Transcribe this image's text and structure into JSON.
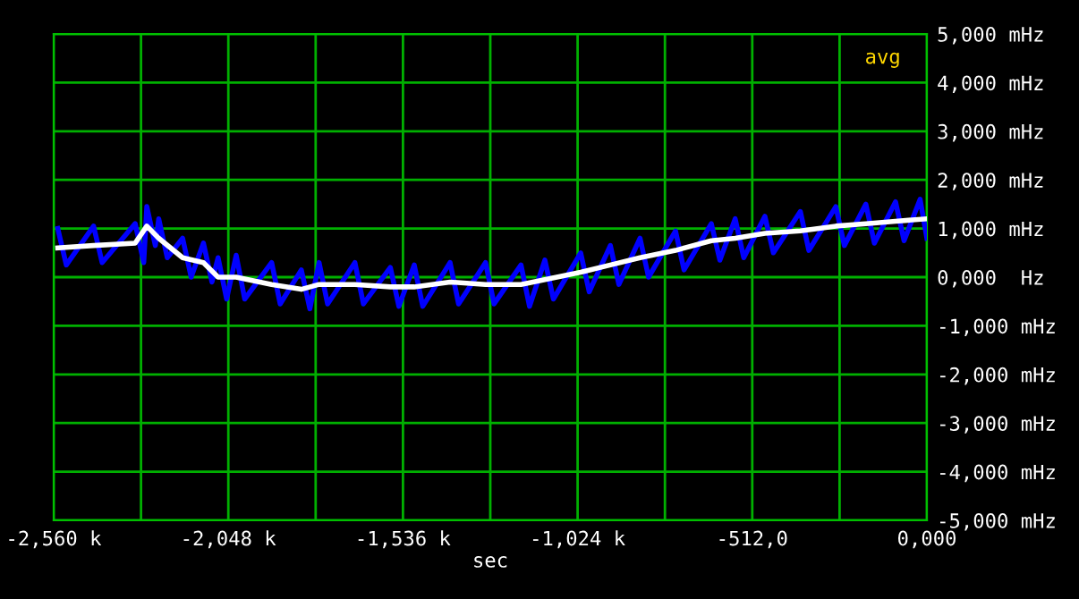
{
  "chart_data": {
    "type": "line",
    "xlabel": "sec",
    "x": [
      -2548,
      -2443,
      -2321,
      -2287,
      -2252,
      -2182,
      -2121,
      -2078,
      -2025,
      -1921,
      -1834,
      -1782,
      -1677,
      -1573,
      -1503,
      -1398,
      -1294,
      -1190,
      -1120,
      -1015,
      -928,
      -841,
      -737,
      -632,
      -562,
      -475,
      -371,
      -267,
      -179,
      -92,
      0
    ],
    "series": [
      {
        "color": "#0000ff",
        "x": [
          -2548,
          -2523,
          -2443,
          -2418,
          -2321,
          -2296,
          -2287,
          -2262,
          -2252,
          -2227,
          -2182,
          -2157,
          -2121,
          -2096,
          -2078,
          -2053,
          -2025,
          -2000,
          -1921,
          -1896,
          -1834,
          -1809,
          -1782,
          -1757,
          -1677,
          -1652,
          -1573,
          -1548,
          -1503,
          -1478,
          -1398,
          -1373,
          -1294,
          -1269,
          -1190,
          -1165,
          -1120,
          -1095,
          -1015,
          -990,
          -928,
          -903,
          -841,
          -816,
          -737,
          -712,
          -632,
          -607,
          -562,
          -537,
          -475,
          -450,
          -371,
          -346,
          -267,
          -242,
          -179,
          -154,
          -92,
          -67,
          -20,
          0
        ],
        "values": [
          1.0,
          0.25,
          1.05,
          0.3,
          1.1,
          0.3,
          1.45,
          0.65,
          1.2,
          0.4,
          0.8,
          0,
          0.7,
          -0.1,
          0.4,
          -0.45,
          0.45,
          -0.45,
          0.3,
          -0.55,
          0.15,
          -0.65,
          0.3,
          -0.55,
          0.3,
          -0.55,
          0.2,
          -0.6,
          0.25,
          -0.6,
          0.3,
          -0.55,
          0.3,
          -0.55,
          0.25,
          -0.6,
          0.35,
          -0.45,
          0.5,
          -0.3,
          0.65,
          -0.15,
          0.8,
          0,
          0.95,
          0.15,
          1.1,
          0.35,
          1.2,
          0.4,
          1.25,
          0.5,
          1.35,
          0.55,
          1.45,
          0.65,
          1.5,
          0.7,
          1.55,
          0.75,
          1.6,
          0.8
        ]
      },
      {
        "color": "#ffffff",
        "values": [
          0.6,
          0.65,
          0.7,
          1.05,
          0.8,
          0.4,
          0.3,
          0,
          0,
          -0.15,
          -0.25,
          -0.15,
          -0.15,
          -0.2,
          -0.2,
          -0.1,
          -0.15,
          -0.15,
          -0.05,
          0.1,
          0.25,
          0.4,
          0.55,
          0.75,
          0.8,
          0.9,
          0.95,
          1.05,
          1.1,
          1.15,
          1.2
        ]
      }
    ],
    "xlim": [
      -2560,
      0
    ],
    "xticks": [
      {
        "value": -2560,
        "label": "-2,560 k"
      },
      {
        "value": -2304,
        "label": null
      },
      {
        "value": -2048,
        "label": "-2,048 k"
      },
      {
        "value": -1792,
        "label": null
      },
      {
        "value": -1536,
        "label": "-1,536 k"
      },
      {
        "value": -1280,
        "label": null
      },
      {
        "value": -1024,
        "label": "-1,024 k"
      },
      {
        "value": -768,
        "label": null
      },
      {
        "value": -512,
        "label": "-512,0"
      },
      {
        "value": -256,
        "label": null
      },
      {
        "value": 0,
        "label": "0,000"
      }
    ],
    "ylim": [
      -5,
      5
    ],
    "yticks": [
      {
        "value": -5,
        "label": "-5,000 mHz"
      },
      {
        "value": -4,
        "label": "-4,000 mHz"
      },
      {
        "value": -3,
        "label": "-3,000 mHz"
      },
      {
        "value": -2,
        "label": "-2,000 mHz"
      },
      {
        "value": -1,
        "label": "-1,000 mHz"
      },
      {
        "value": 0,
        "label": "0,000  Hz"
      },
      {
        "value": 1,
        "label": "1,000 mHz"
      },
      {
        "value": 2,
        "label": "2,000 mHz"
      },
      {
        "value": 3,
        "label": "3,000 mHz"
      },
      {
        "value": 4,
        "label": "4,000 mHz"
      },
      {
        "value": 5,
        "label": "5,000 mHz"
      }
    ],
    "grid": true,
    "annotations": [
      "avg"
    ]
  }
}
